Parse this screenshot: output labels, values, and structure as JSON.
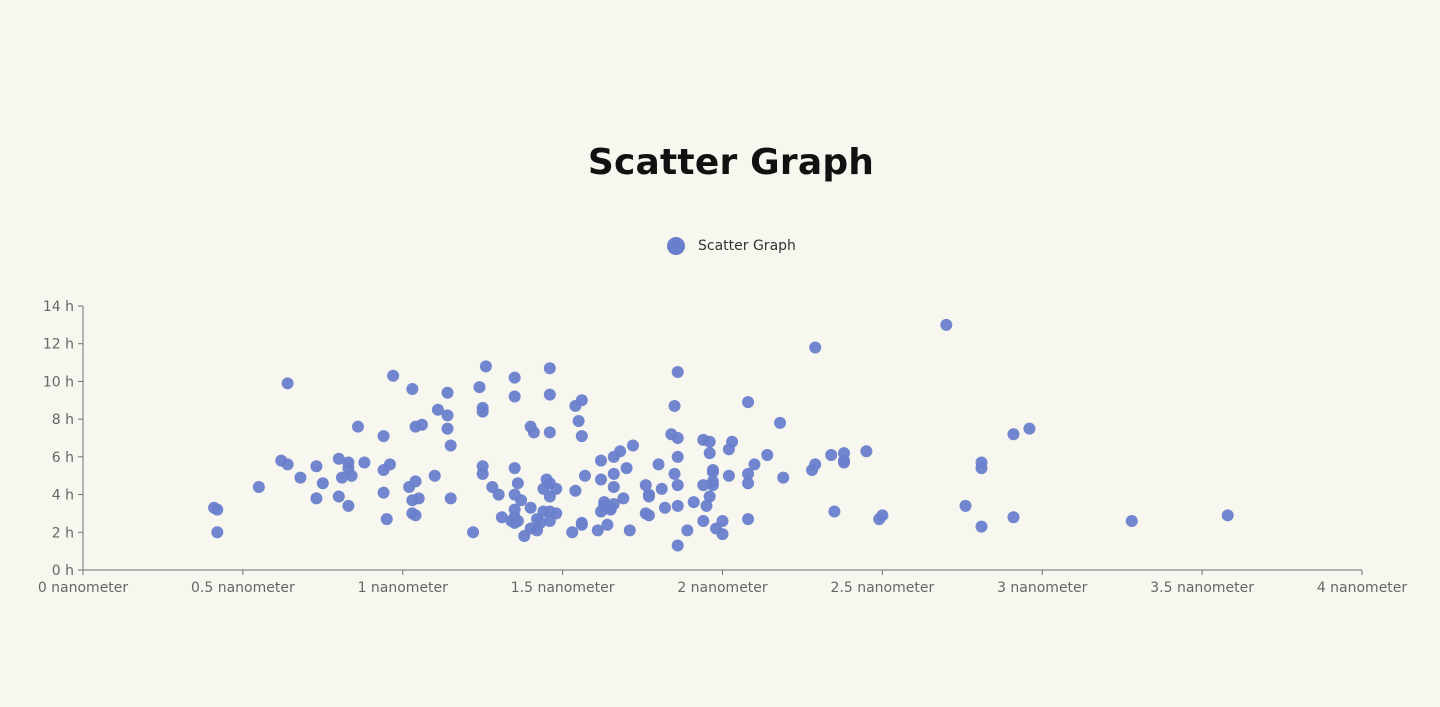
{
  "chart_data": {
    "type": "scatter",
    "title": "Scatter Graph",
    "legend": [
      "Scatter Graph"
    ],
    "legend_position": "top-center",
    "color": "#6a7fcc",
    "background": "#f7f6ef",
    "axis_color": "#6e7079",
    "xlim": [
      0,
      4
    ],
    "ylim": [
      0,
      14
    ],
    "x_ticks": [
      {
        "value": 0,
        "label": "0 nanometer"
      },
      {
        "value": 0.5,
        "label": "0.5 nanometer"
      },
      {
        "value": 1,
        "label": "1 nanometer"
      },
      {
        "value": 1.5,
        "label": "1.5 nanometer"
      },
      {
        "value": 2,
        "label": "2 nanometer"
      },
      {
        "value": 2.5,
        "label": "2.5 nanometer"
      },
      {
        "value": 3,
        "label": "3 nanometer"
      },
      {
        "value": 3.5,
        "label": "3.5 nanometer"
      },
      {
        "value": 4,
        "label": "4 nanometer"
      }
    ],
    "y_ticks": [
      {
        "value": 0,
        "label": "0 h"
      },
      {
        "value": 2,
        "label": "2 h"
      },
      {
        "value": 4,
        "label": "4 h"
      },
      {
        "value": 6,
        "label": "6 h"
      },
      {
        "value": 8,
        "label": "8 h"
      },
      {
        "value": 10,
        "label": "10 h"
      },
      {
        "value": 12,
        "label": "12 h"
      },
      {
        "value": 14,
        "label": "14 h"
      }
    ],
    "grid": false,
    "series": [
      {
        "name": "Scatter Graph",
        "points": [
          [
            0.41,
            3.3
          ],
          [
            0.42,
            3.2
          ],
          [
            0.42,
            2.0
          ],
          [
            0.55,
            4.4
          ],
          [
            0.62,
            5.8
          ],
          [
            0.64,
            5.6
          ],
          [
            0.64,
            9.9
          ],
          [
            0.68,
            4.9
          ],
          [
            0.73,
            5.5
          ],
          [
            0.73,
            3.8
          ],
          [
            0.75,
            4.6
          ],
          [
            0.8,
            5.9
          ],
          [
            0.8,
            3.9
          ],
          [
            0.81,
            4.9
          ],
          [
            0.83,
            5.7
          ],
          [
            0.83,
            5.4
          ],
          [
            0.83,
            3.4
          ],
          [
            0.84,
            5.0
          ],
          [
            0.86,
            7.6
          ],
          [
            0.88,
            5.7
          ],
          [
            0.94,
            7.1
          ],
          [
            0.94,
            5.3
          ],
          [
            0.94,
            4.1
          ],
          [
            0.95,
            2.7
          ],
          [
            0.96,
            5.6
          ],
          [
            0.97,
            10.3
          ],
          [
            1.02,
            4.4
          ],
          [
            1.03,
            9.6
          ],
          [
            1.03,
            3.7
          ],
          [
            1.03,
            3.0
          ],
          [
            1.04,
            4.7
          ],
          [
            1.04,
            2.9
          ],
          [
            1.04,
            7.6
          ],
          [
            1.05,
            3.8
          ],
          [
            1.06,
            7.7
          ],
          [
            1.1,
            5.0
          ],
          [
            1.11,
            8.5
          ],
          [
            1.14,
            9.4
          ],
          [
            1.14,
            8.2
          ],
          [
            1.14,
            7.5
          ],
          [
            1.15,
            6.6
          ],
          [
            1.15,
            3.8
          ],
          [
            1.22,
            2.0
          ],
          [
            1.24,
            9.7
          ],
          [
            1.25,
            8.6
          ],
          [
            1.25,
            8.4
          ],
          [
            1.25,
            5.5
          ],
          [
            1.25,
            5.1
          ],
          [
            1.26,
            10.8
          ],
          [
            1.28,
            4.4
          ],
          [
            1.3,
            4.0
          ],
          [
            1.31,
            2.8
          ],
          [
            1.34,
            2.6
          ],
          [
            1.35,
            10.2
          ],
          [
            1.35,
            9.2
          ],
          [
            1.35,
            5.4
          ],
          [
            1.35,
            4.0
          ],
          [
            1.35,
            3.2
          ],
          [
            1.35,
            2.8
          ],
          [
            1.35,
            2.5
          ],
          [
            1.36,
            4.6
          ],
          [
            1.36,
            2.6
          ],
          [
            1.37,
            3.7
          ],
          [
            1.38,
            1.8
          ],
          [
            1.4,
            7.6
          ],
          [
            1.4,
            3.3
          ],
          [
            1.4,
            2.2
          ],
          [
            1.41,
            7.3
          ],
          [
            1.42,
            2.1
          ],
          [
            1.42,
            2.7
          ],
          [
            1.43,
            2.5
          ],
          [
            1.44,
            4.3
          ],
          [
            1.44,
            3.1
          ],
          [
            1.45,
            4.8
          ],
          [
            1.46,
            10.7
          ],
          [
            1.46,
            9.3
          ],
          [
            1.46,
            7.3
          ],
          [
            1.46,
            4.6
          ],
          [
            1.46,
            3.9
          ],
          [
            1.46,
            3.1
          ],
          [
            1.46,
            2.6
          ],
          [
            1.48,
            4.3
          ],
          [
            1.48,
            3.0
          ],
          [
            1.53,
            2.0
          ],
          [
            1.54,
            8.7
          ],
          [
            1.54,
            4.2
          ],
          [
            1.55,
            7.9
          ],
          [
            1.56,
            9.0
          ],
          [
            1.56,
            7.1
          ],
          [
            1.56,
            2.5
          ],
          [
            1.56,
            2.4
          ],
          [
            1.57,
            5.0
          ],
          [
            1.61,
            2.1
          ],
          [
            1.62,
            5.8
          ],
          [
            1.62,
            4.8
          ],
          [
            1.62,
            3.1
          ],
          [
            1.63,
            3.6
          ],
          [
            1.63,
            3.4
          ],
          [
            1.64,
            2.4
          ],
          [
            1.65,
            3.3
          ],
          [
            1.65,
            3.2
          ],
          [
            1.66,
            6.0
          ],
          [
            1.66,
            5.1
          ],
          [
            1.66,
            4.4
          ],
          [
            1.66,
            3.5
          ],
          [
            1.68,
            6.3
          ],
          [
            1.69,
            3.8
          ],
          [
            1.7,
            5.4
          ],
          [
            1.71,
            2.1
          ],
          [
            1.72,
            6.6
          ],
          [
            1.76,
            4.5
          ],
          [
            1.76,
            3.0
          ],
          [
            1.77,
            4.0
          ],
          [
            1.77,
            3.9
          ],
          [
            1.77,
            2.9
          ],
          [
            1.8,
            5.6
          ],
          [
            1.81,
            4.3
          ],
          [
            1.82,
            3.3
          ],
          [
            1.84,
            7.2
          ],
          [
            1.85,
            8.7
          ],
          [
            1.85,
            5.1
          ],
          [
            1.86,
            10.5
          ],
          [
            1.86,
            7.0
          ],
          [
            1.86,
            6.0
          ],
          [
            1.86,
            4.5
          ],
          [
            1.86,
            3.4
          ],
          [
            1.86,
            1.3
          ],
          [
            1.89,
            2.1
          ],
          [
            1.91,
            3.6
          ],
          [
            1.94,
            6.9
          ],
          [
            1.94,
            4.5
          ],
          [
            1.94,
            2.6
          ],
          [
            1.95,
            3.4
          ],
          [
            1.96,
            6.8
          ],
          [
            1.96,
            6.2
          ],
          [
            1.96,
            3.9
          ],
          [
            1.97,
            5.3
          ],
          [
            1.97,
            5.2
          ],
          [
            1.97,
            4.7
          ],
          [
            1.97,
            4.5
          ],
          [
            1.98,
            2.2
          ],
          [
            2.0,
            2.6
          ],
          [
            2.0,
            1.9
          ],
          [
            2.02,
            6.4
          ],
          [
            2.02,
            5.0
          ],
          [
            2.03,
            6.8
          ],
          [
            2.08,
            8.9
          ],
          [
            2.08,
            5.1
          ],
          [
            2.08,
            4.6
          ],
          [
            2.08,
            2.7
          ],
          [
            2.1,
            5.6
          ],
          [
            2.14,
            6.1
          ],
          [
            2.18,
            7.8
          ],
          [
            2.19,
            4.9
          ],
          [
            2.28,
            5.3
          ],
          [
            2.29,
            11.8
          ],
          [
            2.29,
            5.6
          ],
          [
            2.34,
            6.1
          ],
          [
            2.35,
            3.1
          ],
          [
            2.38,
            6.2
          ],
          [
            2.38,
            5.8
          ],
          [
            2.38,
            5.7
          ],
          [
            2.45,
            6.3
          ],
          [
            2.49,
            2.7
          ],
          [
            2.5,
            2.9
          ],
          [
            2.7,
            13.0
          ],
          [
            2.76,
            3.4
          ],
          [
            2.81,
            5.7
          ],
          [
            2.81,
            5.4
          ],
          [
            2.81,
            2.3
          ],
          [
            2.91,
            7.2
          ],
          [
            2.91,
            2.8
          ],
          [
            2.96,
            7.5
          ],
          [
            3.28,
            2.6
          ],
          [
            3.58,
            2.9
          ]
        ]
      }
    ]
  }
}
